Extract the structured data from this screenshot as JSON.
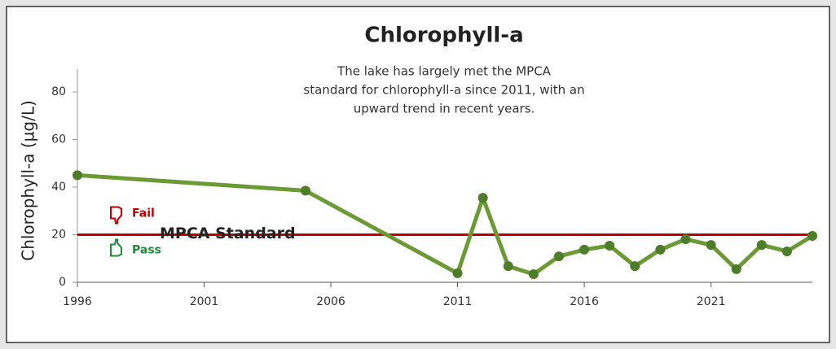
{
  "chart_data": {
    "type": "line",
    "title": "Chlorophyll-a",
    "annotation": [
      "The lake has largely met the MPCA",
      "standard for chlorophyll-a since 2011, with an",
      "upward trend in recent years."
    ],
    "y_label": "Chlorophyll-a  (µg/L)",
    "x": [
      1996,
      2005,
      2011,
      2012,
      2013,
      2014,
      2015,
      2016,
      2017,
      2018,
      2019,
      2020,
      2021,
      2022,
      2023,
      2024,
      2025
    ],
    "series": [
      {
        "name": "Chlorophyll-a",
        "color": "#6b9a35",
        "marker_color": "#4e7d2a",
        "values": [
          45,
          38.5,
          3.8,
          35.5,
          6.8,
          3.4,
          10.9,
          13.7,
          15.4,
          6.8,
          13.7,
          18.1,
          15.7,
          5.5,
          15.7,
          13,
          19.5
        ]
      }
    ],
    "standard": {
      "label": "MPCA Standard",
      "value": 20,
      "color": "#c00000",
      "fail_label": "Fail",
      "pass_label": "Pass",
      "fail_color": "#c00000",
      "pass_color": "#1e8a3c"
    },
    "xlim": [
      1996,
      2025
    ],
    "xticks": [
      1996,
      2001,
      2006,
      2011,
      2016,
      2021
    ],
    "ylim": [
      0,
      80
    ],
    "yticks": [
      0,
      20,
      40,
      60,
      80
    ],
    "grid": false
  }
}
